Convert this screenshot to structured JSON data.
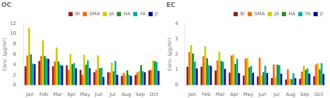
{
  "chart_data": [
    {
      "type": "bar",
      "title": "OC",
      "ylabel": "Conc. (μg/m³)",
      "categories": [
        "Jan",
        "Feb",
        "Mar",
        "Apr",
        "May",
        "Jun",
        "Jul",
        "Aug",
        "Sep",
        "Oct"
      ],
      "series": [
        {
          "name": "BI",
          "color": "#8B1A1A",
          "values": [
            3.7,
            4.7,
            3.7,
            3.9,
            3.0,
            2.5,
            2.5,
            1.8,
            2.0,
            2.9
          ]
        },
        {
          "name": "SMA",
          "color": "#FF6600",
          "values": [
            5.8,
            5.7,
            4.6,
            3.0,
            2.0,
            3.0,
            2.5,
            2.4,
            2.5,
            3.0
          ]
        },
        {
          "name": "JA",
          "color": "#CCCC00",
          "values": [
            11.2,
            8.7,
            7.3,
            6.1,
            5.9,
            5.8,
            4.4,
            2.0,
            2.8,
            4.8
          ]
        },
        {
          "name": "HA",
          "color": "#228B22",
          "values": [
            6.0,
            5.7,
            4.6,
            4.1,
            4.0,
            3.3,
            2.7,
            2.9,
            3.9,
            4.7
          ]
        },
        {
          "name": "YA",
          "color": "#00AAAA",
          "values": [
            4.2,
            5.2,
            4.0,
            4.3,
            4.8,
            3.4,
            4.7,
            2.0,
            2.7,
            4.5
          ]
        },
        {
          "name": "JI",
          "color": "#00008B",
          "values": [
            4.1,
            5.1,
            3.8,
            3.3,
            3.3,
            1.6,
            2.0,
            1.8,
            2.5,
            2.8
          ]
        }
      ],
      "ylim": [
        0,
        12
      ],
      "yticks": [
        0,
        2,
        4,
        6,
        8,
        10,
        12
      ],
      "grid": false,
      "legend": "upper right"
    },
    {
      "type": "bar",
      "title": "EC",
      "ylabel": "Conc. (μg/m³)",
      "categories": [
        "Jan",
        "Feb",
        "Mar",
        "Apr",
        "May",
        "Jun",
        "Jul",
        "Aug",
        "Sep",
        "Oct"
      ],
      "series": [
        {
          "name": "BI",
          "color": "#8B1A1A",
          "values": [
            1.2,
            1.2,
            0.95,
            0.82,
            0.62,
            0.57,
            0.47,
            0.37,
            0.42,
            0.58
          ]
        },
        {
          "name": "SMA",
          "color": "#FF6600",
          "values": [
            2.15,
            1.88,
            1.6,
            1.93,
            1.73,
            1.78,
            1.33,
            1.02,
            0.88,
            1.35
          ]
        },
        {
          "name": "JA",
          "color": "#CCCC00",
          "values": [
            2.6,
            2.5,
            2.18,
            2.0,
            1.78,
            0.62,
            0.5,
            0.42,
            1.25,
            1.42
          ]
        },
        {
          "name": "HA",
          "color": "#228B22",
          "values": [
            2.05,
            1.75,
            1.57,
            1.38,
            1.15,
            0.85,
            1.33,
            0.4,
            1.0,
            1.02
          ]
        },
        {
          "name": "YA",
          "color": "#00AAAA",
          "values": [
            1.52,
            1.3,
            1.52,
            1.7,
            1.25,
            1.25,
            1.3,
            0.78,
            1.08,
            1.42
          ]
        },
        {
          "name": "JI",
          "color": "#00008B",
          "values": [
            1.08,
            1.25,
            1.05,
            0.78,
            0.8,
            0.78,
            0.75,
            0.45,
            0.75,
            0.72
          ]
        }
      ],
      "ylim": [
        0,
        4
      ],
      "yticks": [
        0,
        1,
        2,
        3,
        4
      ],
      "grid": false,
      "legend": "upper right"
    }
  ]
}
